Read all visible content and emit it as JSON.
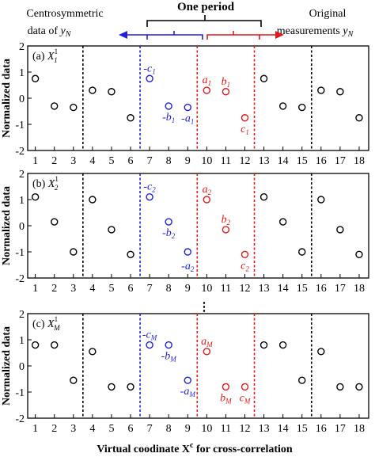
{
  "header": {
    "left_line1": "Centrosymmetric",
    "left_line2": "data of ",
    "left_var": "y",
    "left_sub": "N",
    "center": "One period",
    "right_line1": "Original",
    "right_line2": "measurements ",
    "right_var": "y",
    "right_sub": "N"
  },
  "colors": {
    "blue": "#1f1fd6",
    "red": "#e11919",
    "black": "#000000"
  },
  "chart_data": [
    {
      "type": "scatter",
      "panel": "(a)",
      "panel_var": "X",
      "panel_sub": "1",
      "panel_sup": "1",
      "ylabel": "Normalized data",
      "ylim": [
        -2,
        2
      ],
      "xlim": [
        0.6,
        18.5
      ],
      "yticks": [
        -2,
        -1,
        0,
        1,
        2
      ],
      "x": [
        1,
        2,
        3,
        4,
        5,
        6,
        7,
        8,
        9,
        10,
        11,
        12,
        13,
        14,
        15,
        16,
        17,
        18
      ],
      "y": [
        0.75,
        -0.3,
        -0.35,
        0.3,
        0.25,
        -0.75,
        0.75,
        -0.3,
        -0.35,
        0.3,
        0.25,
        -0.75,
        0.75,
        -0.3,
        -0.35,
        0.3,
        0.25,
        -0.75
      ],
      "colors": [
        "black",
        "black",
        "black",
        "black",
        "black",
        "black",
        "blue",
        "blue",
        "blue",
        "red",
        "red",
        "red",
        "black",
        "black",
        "black",
        "black",
        "black",
        "black"
      ],
      "annotations": [
        {
          "text": "-c",
          "sub": "1",
          "x": 7,
          "y": 0.75,
          "color": "blue"
        },
        {
          "text": "-b",
          "sub": "1",
          "x": 8,
          "y": -0.3,
          "color": "blue"
        },
        {
          "text": "-a",
          "sub": "1",
          "x": 9,
          "y": -0.35,
          "color": "blue"
        },
        {
          "text": "a",
          "sub": "1",
          "x": 10,
          "y": 0.3,
          "color": "red"
        },
        {
          "text": "b",
          "sub": "1",
          "x": 11,
          "y": 0.25,
          "color": "red"
        },
        {
          "text": "c",
          "sub": "1",
          "x": 12,
          "y": -0.75,
          "color": "red"
        }
      ]
    },
    {
      "type": "scatter",
      "panel": "(b)",
      "panel_var": "X",
      "panel_sub": "2",
      "panel_sup": "1",
      "ylabel": "Normalized data",
      "ylim": [
        -2,
        2
      ],
      "xlim": [
        0.6,
        18.5
      ],
      "yticks": [
        -2,
        -1,
        0,
        1,
        2
      ],
      "x": [
        1,
        2,
        3,
        4,
        5,
        6,
        7,
        8,
        9,
        10,
        11,
        12,
        13,
        14,
        15,
        16,
        17,
        18
      ],
      "y": [
        1.1,
        0.15,
        -1.0,
        1.0,
        -0.15,
        -1.1,
        1.1,
        0.15,
        -1.0,
        1.0,
        -0.15,
        -1.1,
        1.1,
        0.15,
        -1.0,
        1.0,
        -0.15,
        -1.1
      ],
      "colors": [
        "black",
        "black",
        "black",
        "black",
        "black",
        "black",
        "blue",
        "blue",
        "blue",
        "red",
        "red",
        "red",
        "black",
        "black",
        "black",
        "black",
        "black",
        "black"
      ],
      "annotations": [
        {
          "text": "-c",
          "sub": "2",
          "x": 7,
          "y": 1.1,
          "color": "blue"
        },
        {
          "text": "-b",
          "sub": "2",
          "x": 8,
          "y": 0.15,
          "color": "blue"
        },
        {
          "text": "-a",
          "sub": "2",
          "x": 9,
          "y": -1.0,
          "color": "blue"
        },
        {
          "text": "a",
          "sub": "2",
          "x": 10,
          "y": 1.0,
          "color": "red"
        },
        {
          "text": "b",
          "sub": "2",
          "x": 11,
          "y": -0.15,
          "color": "red"
        },
        {
          "text": "c",
          "sub": "2",
          "x": 12,
          "y": -1.1,
          "color": "red"
        }
      ]
    },
    {
      "type": "scatter",
      "panel": "(c)",
      "panel_var": "X",
      "panel_sub": "M",
      "panel_sup": "1",
      "ylabel": "Normalized data",
      "ylim": [
        -2,
        2
      ],
      "xlim": [
        0.6,
        18.5
      ],
      "yticks": [
        -2,
        -1,
        0,
        1,
        2
      ],
      "x": [
        1,
        2,
        3,
        4,
        5,
        6,
        7,
        8,
        9,
        10,
        11,
        12,
        13,
        14,
        15,
        16,
        17,
        18
      ],
      "y": [
        0.8,
        0.8,
        -0.55,
        0.55,
        -0.8,
        -0.8,
        0.8,
        0.8,
        -0.55,
        0.55,
        -0.8,
        -0.8,
        0.8,
        0.8,
        -0.55,
        0.55,
        -0.8,
        -0.8
      ],
      "colors": [
        "black",
        "black",
        "black",
        "black",
        "black",
        "black",
        "blue",
        "blue",
        "blue",
        "red",
        "red",
        "red",
        "black",
        "black",
        "black",
        "black",
        "black",
        "black"
      ],
      "annotations": [
        {
          "text": "-c",
          "sub": "M",
          "x": 7,
          "y": 0.8,
          "color": "blue"
        },
        {
          "text": "-b",
          "sub": "M",
          "x": 8,
          "y": 0.8,
          "color": "blue"
        },
        {
          "text": "-a",
          "sub": "M",
          "x": 9,
          "y": -0.55,
          "color": "blue"
        },
        {
          "text": "a",
          "sub": "M",
          "x": 10,
          "y": 0.55,
          "color": "red"
        },
        {
          "text": "b",
          "sub": "M",
          "x": 11,
          "y": -0.8,
          "color": "red"
        },
        {
          "text": "c",
          "sub": "M",
          "x": 12,
          "y": -0.8,
          "color": "red"
        }
      ]
    }
  ],
  "vlines": [
    {
      "x": 3.5,
      "color": "black"
    },
    {
      "x": 6.5,
      "color": "blue"
    },
    {
      "x": 9.5,
      "color": "red"
    },
    {
      "x": 12.5,
      "color": "red"
    },
    {
      "x": 15.5,
      "color": "black"
    }
  ],
  "ellipsis": "⋮",
  "xlabel": "Virtual coodinate X",
  "xlabel_sup": "c",
  "xlabel_tail": " for cross-correlation"
}
